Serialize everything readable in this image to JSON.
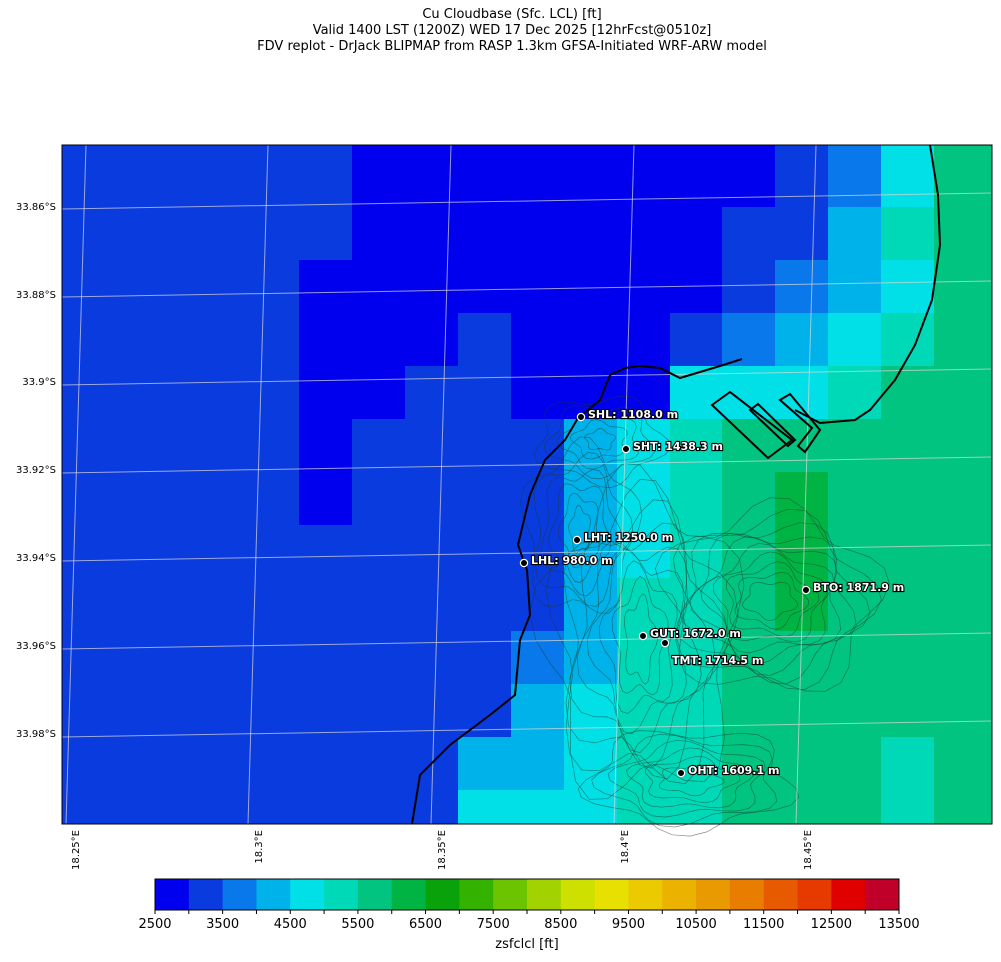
{
  "title": {
    "line1": "Cu Cloudbase (Sfc. LCL) [ft]",
    "line2": "Valid 1400 LST (1200Z) WED 17 Dec 2025 [12hrFcst@0510z]",
    "line3": "FDV replot - DrJack BLIPMAP from RASP 1.3km GFSA-Initiated WRF-ARW model"
  },
  "axes": {
    "lat_labels": [
      "33.86°S",
      "33.88°S",
      "33.9°S",
      "33.92°S",
      "33.94°S",
      "33.96°S",
      "33.98°S"
    ],
    "lon_labels": [
      "18.25°E",
      "18.3°E",
      "18.35°E",
      "18.4°E",
      "18.45°E"
    ]
  },
  "stations": [
    {
      "label": "SHL: 1108.0 m"
    },
    {
      "label": "SHT: 1438.3 m"
    },
    {
      "label": "LHT: 1250.0 m"
    },
    {
      "label": "LHL: 980.0 m"
    },
    {
      "label": "BTO: 1871.9 m"
    },
    {
      "label": "GUT: 1672.0 m"
    },
    {
      "label": "TMT: 1714.5 m"
    },
    {
      "label": "OHT: 1609.1 m"
    }
  ],
  "colorbar": {
    "label": "zsfclcl [ft]",
    "ticks": [
      "2500",
      "3500",
      "4500",
      "5500",
      "6500",
      "7500",
      "8500",
      "9500",
      "10500",
      "11500",
      "12500",
      "13500"
    ],
    "colors": [
      "#0000ee",
      "#0a3bdf",
      "#0878ea",
      "#00b2ea",
      "#00e0e6",
      "#00d9b8",
      "#00c47f",
      "#00b443",
      "#0aa20a",
      "#34b200",
      "#6cc400",
      "#a2d200",
      "#cde000",
      "#e8e000",
      "#ebcb00",
      "#ebb200",
      "#e89a00",
      "#e87d00",
      "#e85a00",
      "#e63a00",
      "#e00000",
      "#c00028"
    ]
  },
  "colors": {
    "coast": "#000000",
    "grid": "#cccccc"
  }
}
